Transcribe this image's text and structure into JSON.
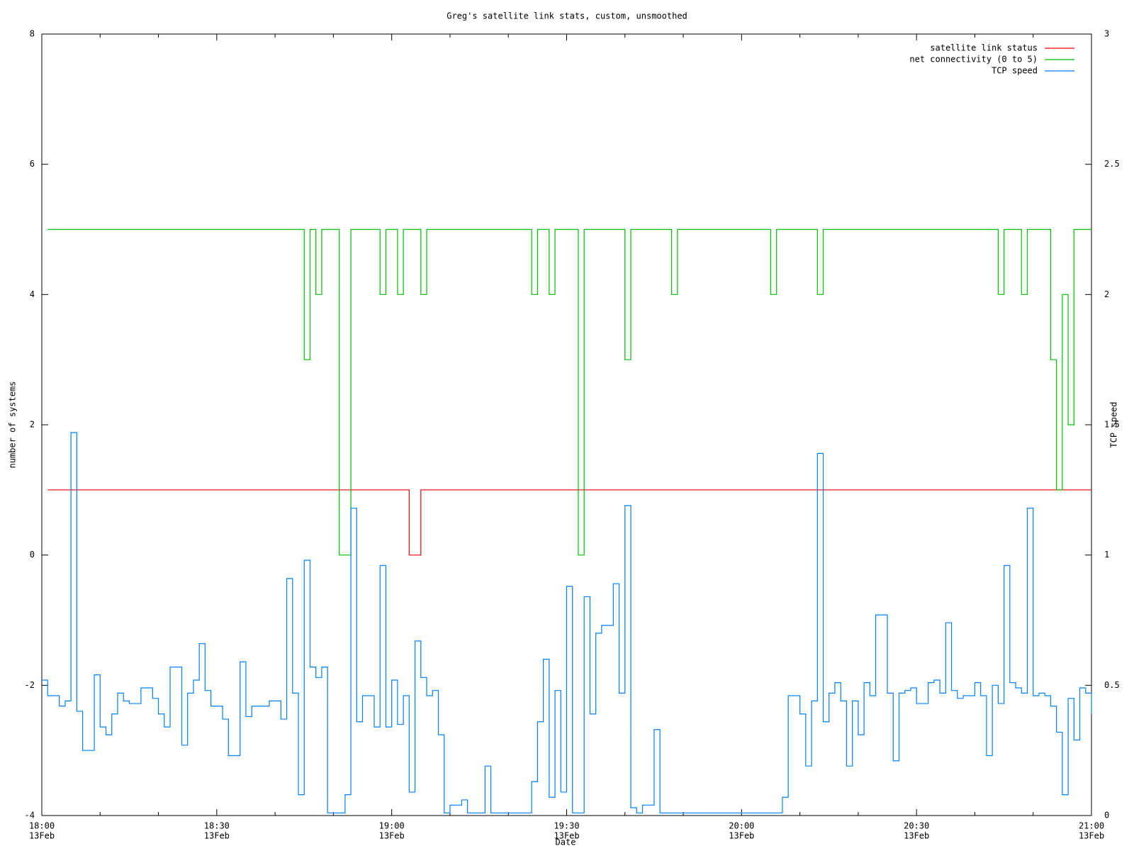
{
  "chart_data": {
    "type": "line",
    "step": true,
    "title": "Greg's satellite link stats, custom, unsmoothed",
    "xlabel": "Date",
    "ylabel": "number of systems",
    "y2label": "TCP speed",
    "xlim": [
      "18:00",
      "21:00"
    ],
    "xticks": [
      "18:00",
      "18:30",
      "19:00",
      "19:30",
      "20:00",
      "20:30",
      "21:00"
    ],
    "xminorticks": [
      "18:10",
      "18:20",
      "18:40",
      "18:50",
      "19:10",
      "19:20",
      "19:40",
      "19:50",
      "20:10",
      "20:20",
      "20:40",
      "20:50"
    ],
    "x_date_label": "13Feb",
    "ylim": [
      -4,
      8
    ],
    "yticks": [
      -4,
      -2,
      0,
      2,
      4,
      6,
      8
    ],
    "y2lim": [
      0,
      3
    ],
    "y2ticks": [
      0,
      0.5,
      1,
      1.5,
      2,
      2.5,
      3
    ],
    "legend": "top-right",
    "grid": false,
    "series": [
      {
        "name": "satellite link status",
        "color": "#ff0000",
        "x": [
          "18:01",
          "19:03",
          "19:05",
          "21:00"
        ],
        "values": [
          1,
          0,
          1,
          1
        ]
      },
      {
        "name": "net connectivity (0 to 5)",
        "color": "#00c000",
        "x": [
          "18:01",
          "18:45",
          "18:46",
          "18:47",
          "18:48",
          "18:51",
          "18:53",
          "18:58",
          "18:59",
          "19:01",
          "19:02",
          "19:05",
          "19:06",
          "19:24",
          "19:25",
          "19:27",
          "19:28",
          "19:32",
          "19:33",
          "19:40",
          "19:41",
          "19:48",
          "19:49",
          "20:05",
          "20:06",
          "20:13",
          "20:14",
          "20:44",
          "20:45",
          "20:48",
          "20:49",
          "20:53",
          "20:54",
          "20:55",
          "20:56",
          "20:57",
          "21:00"
        ],
        "values": [
          5,
          3,
          5,
          4,
          5,
          0,
          5,
          4,
          5,
          4,
          5,
          4,
          5,
          4,
          5,
          4,
          5,
          0,
          5,
          3,
          5,
          4,
          5,
          4,
          5,
          4,
          5,
          4,
          5,
          4,
          5,
          3,
          1,
          4,
          2,
          5,
          5
        ]
      },
      {
        "name": "TCP speed",
        "color": "#0080ff",
        "axis": "y2",
        "x": [
          "18:00",
          "18:01",
          "18:03",
          "18:04",
          "18:05",
          "18:06",
          "18:07",
          "18:09",
          "18:10",
          "18:11",
          "18:12",
          "18:13",
          "18:14",
          "18:15",
          "18:17",
          "18:19",
          "18:20",
          "18:21",
          "18:22",
          "18:24",
          "18:25",
          "18:26",
          "18:27",
          "18:28",
          "18:29",
          "18:31",
          "18:32",
          "18:34",
          "18:35",
          "18:36",
          "18:39",
          "18:41",
          "18:42",
          "18:43",
          "18:44",
          "18:45",
          "18:46",
          "18:47",
          "18:48",
          "18:49",
          "18:52",
          "18:53",
          "18:54",
          "18:55",
          "18:57",
          "18:58",
          "18:59",
          "19:00",
          "19:01",
          "19:02",
          "19:03",
          "19:04",
          "19:05",
          "19:06",
          "19:07",
          "19:08",
          "19:09",
          "19:10",
          "19:12",
          "19:13",
          "19:16",
          "19:17",
          "19:24",
          "19:25",
          "19:26",
          "19:27",
          "19:28",
          "19:29",
          "19:30",
          "19:31",
          "19:33",
          "19:34",
          "19:35",
          "19:36",
          "19:38",
          "19:39",
          "19:40",
          "19:41",
          "19:42",
          "19:43",
          "19:45",
          "19:46",
          "20:07",
          "20:08",
          "20:10",
          "20:11",
          "20:12",
          "20:13",
          "20:14",
          "20:15",
          "20:16",
          "20:17",
          "20:18",
          "20:19",
          "20:20",
          "20:21",
          "20:22",
          "20:23",
          "20:25",
          "20:26",
          "20:27",
          "20:28",
          "20:29",
          "20:30",
          "20:32",
          "20:33",
          "20:34",
          "20:35",
          "20:36",
          "20:37",
          "20:38",
          "20:40",
          "20:41",
          "20:42",
          "20:43",
          "20:44",
          "20:45",
          "20:46",
          "20:47",
          "20:48",
          "20:49",
          "20:50",
          "20:51",
          "20:52",
          "20:53",
          "20:54",
          "20:55",
          "20:56",
          "20:57",
          "20:58",
          "20:59",
          "21:00"
        ],
        "values": [
          0.52,
          0.46,
          0.42,
          0.44,
          1.47,
          0.4,
          0.25,
          0.54,
          0.34,
          0.31,
          0.39,
          0.47,
          0.44,
          0.43,
          0.49,
          0.45,
          0.39,
          0.34,
          0.57,
          0.27,
          0.47,
          0.52,
          0.66,
          0.48,
          0.42,
          0.37,
          0.23,
          0.59,
          0.38,
          0.42,
          0.44,
          0.37,
          0.91,
          0.47,
          0.08,
          0.98,
          0.57,
          0.53,
          0.57,
          0.01,
          0.08,
          1.18,
          0.36,
          0.46,
          0.34,
          0.96,
          0.34,
          0.52,
          0.35,
          0.46,
          0.09,
          0.67,
          0.53,
          0.46,
          0.48,
          0.31,
          0.01,
          0.04,
          0.06,
          0.01,
          0.19,
          0.01,
          0.13,
          0.36,
          0.6,
          0.07,
          0.48,
          0.09,
          0.88,
          0.01,
          0.84,
          0.39,
          0.7,
          0.73,
          0.89,
          0.47,
          1.19,
          0.03,
          0.01,
          0.04,
          0.33,
          0.01,
          0.07,
          0.46,
          0.39,
          0.19,
          0.44,
          1.39,
          0.36,
          0.47,
          0.51,
          0.44,
          0.19,
          0.44,
          0.31,
          0.51,
          0.46,
          0.77,
          0.47,
          0.21,
          0.47,
          0.48,
          0.49,
          0.43,
          0.51,
          0.52,
          0.47,
          0.74,
          0.48,
          0.45,
          0.46,
          0.51,
          0.46,
          0.23,
          0.5,
          0.43,
          0.96,
          0.51,
          0.49,
          0.47,
          1.18,
          0.46,
          0.47,
          0.46,
          0.42,
          0.32,
          0.08,
          0.45,
          0.29,
          0.49,
          0.47,
          0.39
        ]
      }
    ]
  }
}
